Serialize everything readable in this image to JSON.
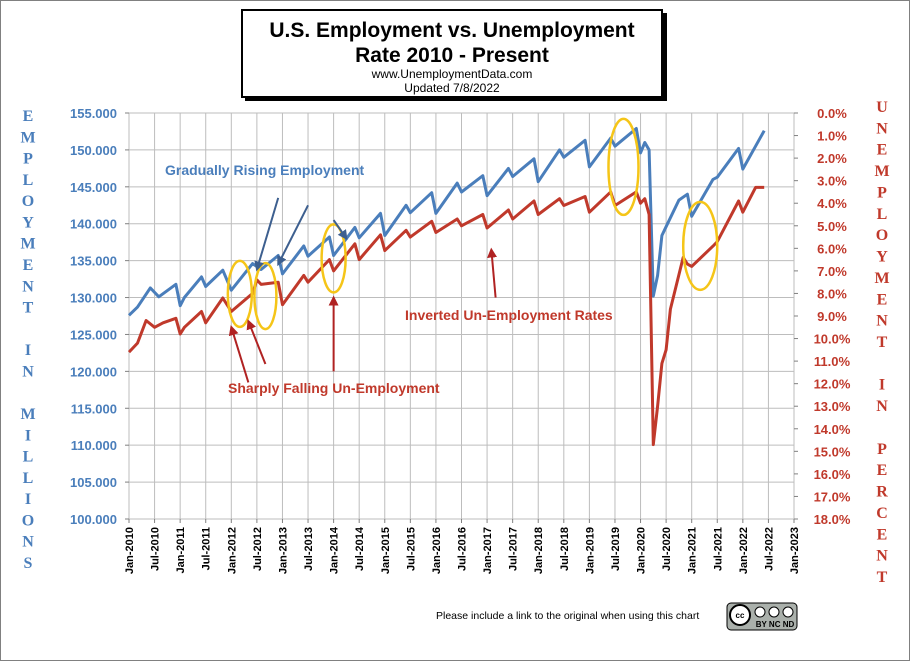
{
  "chart_data": {
    "type": "line",
    "title": "U.S. Employment vs. Unemployment",
    "title_line2": "Rate 2010 - Present",
    "website": "www.UnemploymentData.com",
    "updated": "Updated 7/8/2022",
    "ylabel_left": "EMPLOYMENT IN MILLIONS",
    "ylabel_right": "UNEMPLOYMENT IN PERCENT",
    "ylim_left": [
      100,
      155
    ],
    "ylim_right_inverted": [
      0,
      18
    ],
    "y_ticks_left": [
      "100.000",
      "105.000",
      "110.000",
      "115.000",
      "120.000",
      "125.000",
      "130.000",
      "135.000",
      "140.000",
      "145.000",
      "150.000",
      "155.000"
    ],
    "y_ticks_right": [
      "0.0%",
      "1.0%",
      "2.0%",
      "3.0%",
      "4.0%",
      "5.0%",
      "6.0%",
      "7.0%",
      "8.0%",
      "9.0%",
      "10.0%",
      "11.0%",
      "12.0%",
      "13.0%",
      "14.0%",
      "15.0%",
      "16.0%",
      "17.0%",
      "18.0%"
    ],
    "x_ticks": [
      "Jan-2010",
      "Jul-2010",
      "Jan-2011",
      "Jul-2011",
      "Jan-2012",
      "Jul-2012",
      "Jan-2013",
      "Jul-2013",
      "Jan-2014",
      "Jul-2014",
      "Jan-2015",
      "Jul-2015",
      "Jan-2016",
      "Jul-2016",
      "Jan-2017",
      "Jul-2017",
      "Jan-2018",
      "Jul-2018",
      "Jan-2019",
      "Jul-2019",
      "Jan-2020",
      "Jul-2020",
      "Jan-2021",
      "Jul-2021",
      "Jan-2022",
      "Jul-2022",
      "Jan-2023"
    ],
    "grid": true,
    "series": [
      {
        "axis": "left",
        "color": "#4a7ebb",
        "points": [
          [
            "2010-01",
            127.6
          ],
          [
            "2010-03",
            128.7
          ],
          [
            "2010-06",
            131.3
          ],
          [
            "2010-08",
            130.1
          ],
          [
            "2010-12",
            131.8
          ],
          [
            "2011-01",
            128.9
          ],
          [
            "2011-02",
            130.0
          ],
          [
            "2011-06",
            132.8
          ],
          [
            "2011-07",
            131.5
          ],
          [
            "2011-11",
            133.7
          ],
          [
            "2012-01",
            131.0
          ],
          [
            "2012-06",
            134.6
          ],
          [
            "2012-08",
            133.8
          ],
          [
            "2012-12",
            135.7
          ],
          [
            "2013-01",
            133.2
          ],
          [
            "2013-06",
            137.0
          ],
          [
            "2013-07",
            135.6
          ],
          [
            "2013-12",
            138.2
          ],
          [
            "2014-01",
            135.7
          ],
          [
            "2014-06",
            139.5
          ],
          [
            "2014-07",
            138.1
          ],
          [
            "2014-12",
            141.4
          ],
          [
            "2015-01",
            138.4
          ],
          [
            "2015-06",
            142.5
          ],
          [
            "2015-07",
            141.5
          ],
          [
            "2015-12",
            144.2
          ],
          [
            "2016-01",
            141.4
          ],
          [
            "2016-06",
            145.5
          ],
          [
            "2016-07",
            144.3
          ],
          [
            "2016-12",
            146.5
          ],
          [
            "2017-01",
            143.8
          ],
          [
            "2017-06",
            147.5
          ],
          [
            "2017-07",
            146.4
          ],
          [
            "2017-12",
            148.8
          ],
          [
            "2018-01",
            145.7
          ],
          [
            "2018-06",
            150.0
          ],
          [
            "2018-07",
            149.0
          ],
          [
            "2018-12",
            151.3
          ],
          [
            "2019-01",
            147.7
          ],
          [
            "2019-06",
            151.6
          ],
          [
            "2019-07",
            150.5
          ],
          [
            "2019-12",
            152.9
          ],
          [
            "2020-01",
            149.6
          ],
          [
            "2020-02",
            151.0
          ],
          [
            "2020-03",
            150.0
          ],
          [
            "2020-04",
            130.2
          ],
          [
            "2020-05",
            133.0
          ],
          [
            "2020-06",
            138.4
          ],
          [
            "2020-07",
            139.6
          ],
          [
            "2020-10",
            143.2
          ],
          [
            "2020-12",
            144.0
          ],
          [
            "2021-01",
            141.0
          ],
          [
            "2021-06",
            146.0
          ],
          [
            "2021-07",
            146.3
          ],
          [
            "2021-12",
            150.2
          ],
          [
            "2022-01",
            147.4
          ],
          [
            "2022-06",
            152.6
          ]
        ]
      },
      {
        "axis": "right_inverted",
        "color": "#c0392b",
        "points": [
          [
            "2010-01",
            10.6
          ],
          [
            "2010-03",
            10.2
          ],
          [
            "2010-05",
            9.2
          ],
          [
            "2010-07",
            9.5
          ],
          [
            "2010-09",
            9.3
          ],
          [
            "2010-12",
            9.1
          ],
          [
            "2011-01",
            9.8
          ],
          [
            "2011-02",
            9.5
          ],
          [
            "2011-06",
            8.8
          ],
          [
            "2011-07",
            9.3
          ],
          [
            "2011-11",
            8.2
          ],
          [
            "2012-01",
            8.8
          ],
          [
            "2012-06",
            8.0
          ],
          [
            "2012-07",
            7.4
          ],
          [
            "2012-08",
            7.6
          ],
          [
            "2012-12",
            7.5
          ],
          [
            "2013-01",
            8.5
          ],
          [
            "2013-06",
            7.2
          ],
          [
            "2013-07",
            7.5
          ],
          [
            "2013-12",
            6.5
          ],
          [
            "2014-01",
            7.0
          ],
          [
            "2014-06",
            5.8
          ],
          [
            "2014-07",
            6.5
          ],
          [
            "2014-12",
            5.4
          ],
          [
            "2015-01",
            6.1
          ],
          [
            "2015-06",
            5.2
          ],
          [
            "2015-07",
            5.5
          ],
          [
            "2015-12",
            4.8
          ],
          [
            "2016-01",
            5.3
          ],
          [
            "2016-06",
            4.7
          ],
          [
            "2016-07",
            5.0
          ],
          [
            "2016-12",
            4.5
          ],
          [
            "2017-01",
            5.1
          ],
          [
            "2017-06",
            4.3
          ],
          [
            "2017-07",
            4.7
          ],
          [
            "2017-12",
            3.9
          ],
          [
            "2018-01",
            4.5
          ],
          [
            "2018-06",
            3.8
          ],
          [
            "2018-07",
            4.1
          ],
          [
            "2018-12",
            3.7
          ],
          [
            "2019-01",
            4.4
          ],
          [
            "2019-06",
            3.5
          ],
          [
            "2019-07",
            4.1
          ],
          [
            "2019-12",
            3.5
          ],
          [
            "2020-01",
            4.0
          ],
          [
            "2020-02",
            3.8
          ],
          [
            "2020-03",
            4.5
          ],
          [
            "2020-04",
            14.7
          ],
          [
            "2020-05",
            13.0
          ],
          [
            "2020-06",
            11.1
          ],
          [
            "2020-07",
            10.5
          ],
          [
            "2020-08",
            8.7
          ],
          [
            "2020-11",
            6.4
          ],
          [
            "2020-12",
            6.7
          ],
          [
            "2021-01",
            6.8
          ],
          [
            "2021-06",
            5.9
          ],
          [
            "2021-07",
            5.7
          ],
          [
            "2021-12",
            3.9
          ],
          [
            "2022-01",
            4.4
          ],
          [
            "2022-04",
            3.3
          ],
          [
            "2022-06",
            3.3
          ]
        ]
      }
    ],
    "annotations": {
      "gradually_rising": "Gradually Rising Employment",
      "inverted_rates": "Inverted Un-Employment Rates",
      "sharply_falling": "Sharply Falling Un-Employment"
    },
    "highlight_color": "#f5c518",
    "arrow_color_employment": "#3d5f8f",
    "arrow_color_unemployment": "#b02222"
  },
  "footer": {
    "note": "Please include a link to the original when using this chart",
    "license_badge": "BY NC ND"
  }
}
